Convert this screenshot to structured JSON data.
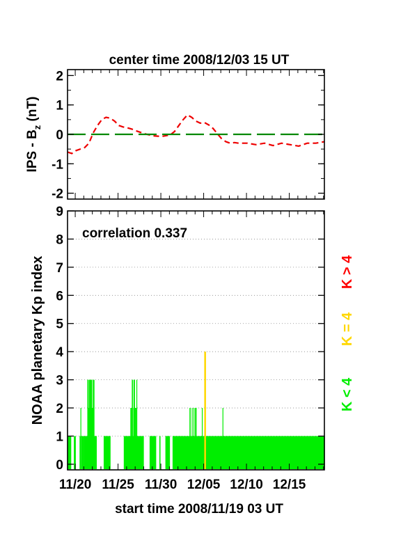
{
  "header": {
    "title": "center time 2008/12/03 15 UT"
  },
  "footer": {
    "xlabel": "start time 2008/11/19 03 UT"
  },
  "colors": {
    "kp_low": "#00ee00",
    "kp_mid": "#ffd700",
    "kp_high": "#ff0000",
    "ips": "#ee0000",
    "zero_line": "#008800"
  },
  "chart_data": [
    {
      "type": "line",
      "ylabel_main": "IPS - B",
      "ylabel_sub": "z",
      "ylabel_unit": " (nT)",
      "ylim": [
        -2.2,
        2.2
      ],
      "yticks": [
        "2",
        "1",
        "0",
        "-1",
        "-2"
      ],
      "xlim": [
        0,
        30
      ],
      "grid": false,
      "series": [
        {
          "style": "dashed-red",
          "x": [
            0,
            0.5,
            1,
            1.5,
            2,
            2.5,
            3,
            3.5,
            4,
            4.5,
            5,
            5.5,
            6,
            6.5,
            7,
            7.5,
            8,
            9,
            10,
            11,
            12,
            12.5,
            13,
            13.5,
            14,
            14.5,
            15,
            15.5,
            16,
            16.5,
            17,
            17.5,
            18,
            18.5,
            19,
            19.5,
            20,
            21,
            22,
            23,
            24,
            25,
            26,
            27,
            28,
            29,
            30
          ],
          "y": [
            -0.6,
            -0.65,
            -0.55,
            -0.5,
            -0.45,
            -0.3,
            0.05,
            0.3,
            0.5,
            0.58,
            0.55,
            0.45,
            0.3,
            0.25,
            0.22,
            0.18,
            0.12,
            0.02,
            -0.05,
            -0.07,
            -0.02,
            0.1,
            0.3,
            0.5,
            0.66,
            0.58,
            0.45,
            0.38,
            0.4,
            0.32,
            0.2,
            0.02,
            -0.15,
            -0.25,
            -0.3,
            -0.28,
            -0.3,
            -0.3,
            -0.35,
            -0.3,
            -0.38,
            -0.3,
            -0.35,
            -0.4,
            -0.3,
            -0.3,
            -0.25
          ]
        },
        {
          "style": "dashed-green",
          "x": [
            0,
            30
          ],
          "y": [
            0,
            0
          ]
        }
      ]
    },
    {
      "type": "bar",
      "ylabel": "NOAA planetary Kp index",
      "ylim": [
        -0.2,
        9
      ],
      "yticks": [
        "9",
        "8",
        "7",
        "6",
        "5",
        "4",
        "3",
        "2",
        "1",
        "0"
      ],
      "xlim": [
        0,
        30
      ],
      "xticks": [
        "11/20",
        "11/25",
        "11/30",
        "12/05",
        "12/10",
        "12/15"
      ],
      "xtick_pos": [
        0.9,
        5.9,
        10.9,
        15.9,
        20.9,
        25.9
      ],
      "grid": "dotted horizontal",
      "annotation": "correlation 0.337",
      "legend": [
        "K < 4",
        "K = 4",
        "K > 4"
      ],
      "legend_placement": "right (vertical)",
      "kp_per_3h": "1111111111100000000000111110000000000000001102001001111001111111111113322233312333332121312311111111000000000000000000000000001111111111111111111111000000000000000000000000000000000000000000000000111111111111111111111112221133111233322122113111111111111111111111110000000000000000000000111111111111111111101000000000000011000000000000000000011111111111111000000000001111111111111111111111111111111111111111111111111111111111122111111211111211112112111111111111111111112111111111111111111111111111111111111111111111111111111111111111111111112111111111111111111111111111111111111111111111111111111111111111111111111111111111111111111111111111111111111111111111111111111111111111111111111111111111111111111111111111111111111111111111111111111111111111111111111111111111111111111111111111111111111111111111111111111111111111111111111111111111111111111111111111111111111111111111111111111111111111111"
    }
  ]
}
